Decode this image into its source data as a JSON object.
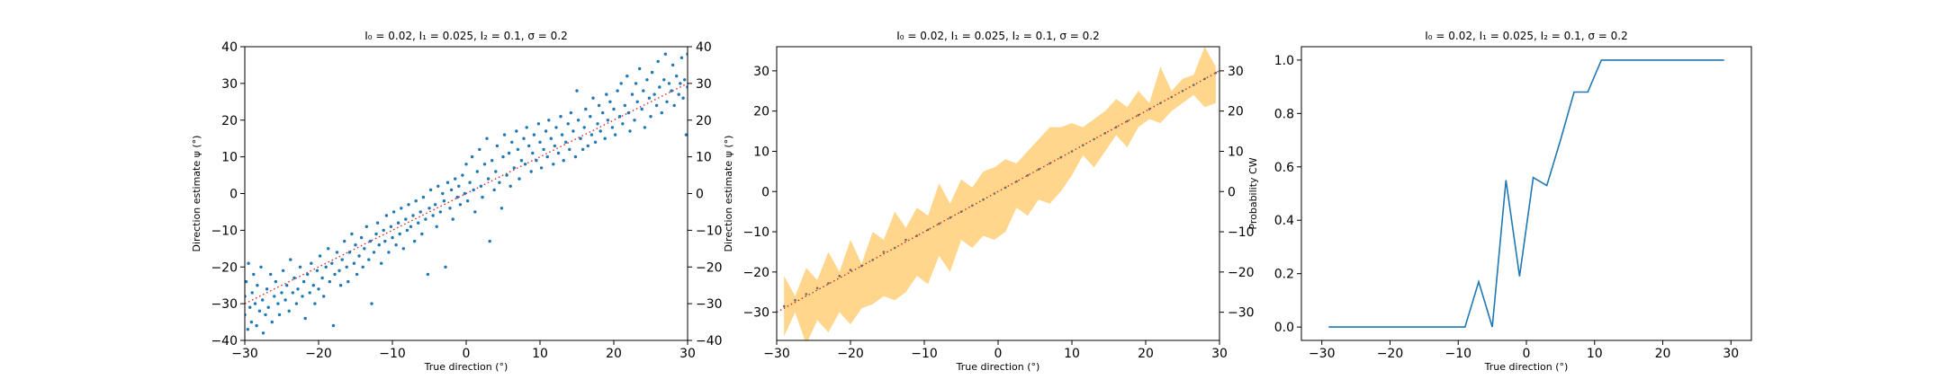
{
  "figure": {
    "background": "#ffffff"
  },
  "colors": {
    "scatter": "#1f77b4",
    "identity": "#d62728",
    "band": "#ffa500",
    "line": "#1f77b4"
  },
  "chart_data": [
    {
      "type": "scatter",
      "title": "I₀ = 0.02, I₁ = 0.025, I₂ = 0.1, σ = 0.2",
      "xlabel": "True direction (°)",
      "ylabel": "Direction estimate ψ (°)",
      "xlim": [
        -30,
        30
      ],
      "ylim": [
        -40,
        40
      ],
      "xticks": [
        "−30",
        "−20",
        "−10",
        "0",
        "10",
        "20",
        "30"
      ],
      "yticks": [
        "40",
        "30",
        "20",
        "10",
        "0",
        "−10",
        "−20",
        "−30",
        "−40"
      ],
      "right_yticks": [
        "40",
        "30",
        "20",
        "10",
        "0",
        "−10",
        "−20",
        "−30",
        "−40"
      ],
      "identity_line": {
        "x": [
          -30,
          30
        ],
        "y": [
          -30,
          30
        ],
        "style": "dotted"
      },
      "points": [
        [
          -30,
          -33
        ],
        [
          -30,
          -28
        ],
        [
          -29.8,
          -24
        ],
        [
          -29.6,
          -37
        ],
        [
          -29.5,
          -19
        ],
        [
          -29.3,
          -31
        ],
        [
          -29.1,
          -35
        ],
        [
          -29,
          -27
        ],
        [
          -28.8,
          -22
        ],
        [
          -28.6,
          -30
        ],
        [
          -28.4,
          -36
        ],
        [
          -28.3,
          -25
        ],
        [
          -28,
          -32
        ],
        [
          -27.8,
          -20
        ],
        [
          -27.6,
          -29
        ],
        [
          -27.5,
          -38
        ],
        [
          -27.2,
          -33
        ],
        [
          -27,
          -26
        ],
        [
          -26.8,
          -31
        ],
        [
          -26.5,
          -22
        ],
        [
          -26.3,
          -35
        ],
        [
          -26,
          -28
        ],
        [
          -25.8,
          -24
        ],
        [
          -25.5,
          -30
        ],
        [
          -25.3,
          -33
        ],
        [
          -25,
          -27
        ],
        [
          -24.8,
          -21
        ],
        [
          -24.5,
          -29
        ],
        [
          -24.3,
          -25
        ],
        [
          -24,
          -32
        ],
        [
          -23.8,
          -18
        ],
        [
          -23.5,
          -27
        ],
        [
          -23.3,
          -23
        ],
        [
          -23,
          -30
        ],
        [
          -22.8,
          -26
        ],
        [
          -22.5,
          -20
        ],
        [
          -22.2,
          -28
        ],
        [
          -22,
          -24
        ],
        [
          -21.8,
          -34
        ],
        [
          -21.5,
          -22
        ],
        [
          -21.2,
          -27
        ],
        [
          -21,
          -19
        ],
        [
          -20.7,
          -25
        ],
        [
          -20.5,
          -30
        ],
        [
          -20.2,
          -21
        ],
        [
          -20,
          -26
        ],
        [
          -19.8,
          -17
        ],
        [
          -19.5,
          -23
        ],
        [
          -19.3,
          -28
        ],
        [
          -19,
          -20
        ],
        [
          -18.7,
          -15
        ],
        [
          -18.5,
          -24
        ],
        [
          -18.2,
          -19
        ],
        [
          -18,
          -36
        ],
        [
          -17.8,
          -22
        ],
        [
          -17.5,
          -16
        ],
        [
          -17.2,
          -21
        ],
        [
          -17,
          -25
        ],
        [
          -16.8,
          -18
        ],
        [
          -16.5,
          -13
        ],
        [
          -16.2,
          -20
        ],
        [
          -16,
          -24
        ],
        [
          -15.8,
          -16
        ],
        [
          -15.5,
          -11
        ],
        [
          -15.2,
          -19
        ],
        [
          -15,
          -14
        ],
        [
          -14.8,
          -22
        ],
        [
          -14.5,
          -17
        ],
        [
          -14.2,
          -12
        ],
        [
          -14,
          -20
        ],
        [
          -13.8,
          -15
        ],
        [
          -13.5,
          -9
        ],
        [
          -13.2,
          -18
        ],
        [
          -13,
          -13
        ],
        [
          -12.8,
          -30
        ],
        [
          -12.5,
          -16
        ],
        [
          -12.2,
          -11
        ],
        [
          -12,
          -8
        ],
        [
          -11.8,
          -14
        ],
        [
          -11.5,
          -19
        ],
        [
          -11.2,
          -10
        ],
        [
          -11,
          -13
        ],
        [
          -10.8,
          -6
        ],
        [
          -10.5,
          -16
        ],
        [
          -10.2,
          -9
        ],
        [
          -10,
          -12
        ],
        [
          -9.8,
          -5
        ],
        [
          -9.5,
          -14
        ],
        [
          -9.2,
          -8
        ],
        [
          -9,
          -11
        ],
        [
          -8.8,
          -4
        ],
        [
          -8.5,
          -15
        ],
        [
          -8.2,
          -7
        ],
        [
          -8,
          -10
        ],
        [
          -7.8,
          -3
        ],
        [
          -7.5,
          -9
        ],
        [
          -7.2,
          -6
        ],
        [
          -7,
          -13
        ],
        [
          -6.8,
          -2
        ],
        [
          -6.5,
          -8
        ],
        [
          -6.2,
          -5
        ],
        [
          -6,
          -11
        ],
        [
          -5.8,
          -1
        ],
        [
          -5.5,
          -7
        ],
        [
          -5.2,
          -22
        ],
        [
          -5,
          -4
        ],
        [
          -4.8,
          1
        ],
        [
          -4.5,
          -6
        ],
        [
          -4.2,
          -3
        ],
        [
          -4,
          -9
        ],
        [
          -3.8,
          2
        ],
        [
          -3.5,
          -5
        ],
        [
          -3.2,
          0
        ],
        [
          -3,
          -2
        ],
        [
          -2.8,
          -20
        ],
        [
          -2.5,
          3
        ],
        [
          -2.2,
          -4
        ],
        [
          -2,
          1
        ],
        [
          -1.8,
          -7
        ],
        [
          -1.5,
          4
        ],
        [
          -1.2,
          -1
        ],
        [
          -1,
          2
        ],
        [
          -0.8,
          -3
        ],
        [
          -0.5,
          5
        ],
        [
          -0.2,
          0
        ],
        [
          0,
          8
        ],
        [
          0.2,
          -2
        ],
        [
          0.5,
          3
        ],
        [
          0.8,
          10
        ],
        [
          1,
          1
        ],
        [
          1.2,
          -5
        ],
        [
          1.5,
          6
        ],
        [
          1.8,
          12
        ],
        [
          2,
          2
        ],
        [
          2.2,
          -1
        ],
        [
          2.5,
          8
        ],
        [
          2.8,
          15
        ],
        [
          3,
          4
        ],
        [
          3.2,
          -13
        ],
        [
          3.5,
          9
        ],
        [
          3.8,
          1
        ],
        [
          4,
          6
        ],
        [
          4.2,
          13
        ],
        [
          4.5,
          3
        ],
        [
          4.8,
          -4
        ],
        [
          5,
          10
        ],
        [
          5.2,
          16
        ],
        [
          5.5,
          5
        ],
        [
          5.8,
          11
        ],
        [
          6,
          2
        ],
        [
          6.2,
          14
        ],
        [
          6.5,
          7
        ],
        [
          6.8,
          17
        ],
        [
          7,
          12
        ],
        [
          7.2,
          4
        ],
        [
          7.5,
          9
        ],
        [
          7.8,
          15
        ],
        [
          8,
          8
        ],
        [
          8.2,
          18
        ],
        [
          8.5,
          13
        ],
        [
          8.8,
          6
        ],
        [
          9,
          11
        ],
        [
          9.2,
          16
        ],
        [
          9.5,
          9
        ],
        [
          9.8,
          19
        ],
        [
          10,
          14
        ],
        [
          10.2,
          7
        ],
        [
          10.5,
          12
        ],
        [
          10.8,
          17
        ],
        [
          11,
          10
        ],
        [
          11.2,
          20
        ],
        [
          11.5,
          15
        ],
        [
          11.8,
          8
        ],
        [
          12,
          13
        ],
        [
          12.2,
          18
        ],
        [
          12.5,
          11
        ],
        [
          12.8,
          21
        ],
        [
          13,
          16
        ],
        [
          13.2,
          9
        ],
        [
          13.5,
          14
        ],
        [
          13.8,
          19
        ],
        [
          14,
          12
        ],
        [
          14.2,
          22
        ],
        [
          14.5,
          17
        ],
        [
          14.8,
          10
        ],
        [
          15,
          28
        ],
        [
          15.2,
          20
        ],
        [
          15.5,
          15
        ],
        [
          15.8,
          12
        ],
        [
          16,
          18
        ],
        [
          16.2,
          23
        ],
        [
          16.5,
          13
        ],
        [
          16.8,
          21
        ],
        [
          17,
          16
        ],
        [
          17.2,
          26
        ],
        [
          17.5,
          14
        ],
        [
          17.8,
          19
        ],
        [
          18,
          24
        ],
        [
          18.2,
          17
        ],
        [
          18.5,
          22
        ],
        [
          18.8,
          15
        ],
        [
          19,
          27
        ],
        [
          19.2,
          20
        ],
        [
          19.5,
          25
        ],
        [
          19.8,
          18
        ],
        [
          20,
          23
        ],
        [
          20.2,
          16
        ],
        [
          20.5,
          28
        ],
        [
          20.8,
          21
        ],
        [
          21,
          30
        ],
        [
          21.2,
          19
        ],
        [
          21.5,
          24
        ],
        [
          21.8,
          32
        ],
        [
          22,
          22
        ],
        [
          22.2,
          17
        ],
        [
          22.5,
          27
        ],
        [
          22.8,
          20
        ],
        [
          23,
          30
        ],
        [
          23.2,
          25
        ],
        [
          23.5,
          34
        ],
        [
          23.8,
          23
        ],
        [
          24,
          28
        ],
        [
          24.2,
          18
        ],
        [
          24.5,
          31
        ],
        [
          24.8,
          26
        ],
        [
          25,
          21
        ],
        [
          25.2,
          33
        ],
        [
          25.5,
          27
        ],
        [
          25.8,
          24
        ],
        [
          26,
          36
        ],
        [
          26.2,
          29
        ],
        [
          26.5,
          22
        ],
        [
          26.8,
          31
        ],
        [
          27,
          38
        ],
        [
          27.2,
          25
        ],
        [
          27.5,
          30
        ],
        [
          27.8,
          28
        ],
        [
          28,
          35
        ],
        [
          28.2,
          24
        ],
        [
          28.5,
          32
        ],
        [
          28.8,
          27
        ],
        [
          29,
          30
        ],
        [
          29.2,
          37
        ],
        [
          29.4,
          26
        ],
        [
          29.6,
          31
        ],
        [
          29.8,
          16
        ],
        [
          30,
          38
        ],
        [
          30,
          29
        ]
      ]
    },
    {
      "type": "area",
      "title": "I₀ = 0.02, I₁ = 0.025, I₂ = 0.1, σ = 0.2",
      "xlabel": "True direction (°)",
      "ylabel": "Direction estimate ψ (°)",
      "xlim": [
        -30,
        30
      ],
      "ylim": [
        -37,
        36
      ],
      "xticks": [
        "−30",
        "−20",
        "−10",
        "0",
        "10",
        "20",
        "30"
      ],
      "yticks": [
        "30",
        "20",
        "10",
        "0",
        "−10",
        "−20",
        "−30"
      ],
      "right_yticks": [
        "30",
        "20",
        "10",
        "0",
        "−10",
        "−20",
        "−30"
      ],
      "identity_line": {
        "x": [
          -30,
          30
        ],
        "y": [
          -30,
          30
        ],
        "style": "dotted"
      },
      "x": [
        -29,
        -27.5,
        -26,
        -24.5,
        -23,
        -21.5,
        -20,
        -18.5,
        -17,
        -15.5,
        -14,
        -12.5,
        -11,
        -9.5,
        -8,
        -6.5,
        -5,
        -3.5,
        -2,
        -0.5,
        1,
        2.5,
        4,
        5.5,
        7,
        8.5,
        10,
        11.5,
        13,
        14.5,
        16,
        17.5,
        19,
        20.5,
        22,
        23.5,
        25,
        26.5,
        28,
        29.5
      ],
      "band_upper": [
        -21,
        -26,
        -19,
        -22,
        -15,
        -20,
        -12,
        -18,
        -10,
        -12,
        -5,
        -9,
        -4,
        -6,
        2,
        -3,
        3,
        1,
        5,
        6,
        8,
        7,
        10,
        13,
        16,
        16,
        17,
        16,
        18,
        20,
        23,
        21,
        25,
        22,
        31,
        25,
        28,
        29,
        36,
        31
      ],
      "band_lower": [
        -36,
        -30,
        -38,
        -32,
        -35,
        -30,
        -33,
        -29,
        -28,
        -26,
        -27,
        -25,
        -21,
        -23,
        -16,
        -20,
        -12,
        -14,
        -11,
        -12,
        -10,
        -4,
        -6,
        -2,
        -3,
        0,
        4,
        9,
        6,
        10,
        14,
        11,
        16,
        18,
        17,
        20,
        22,
        24,
        21,
        22
      ],
      "points": [
        [
          -29,
          -28.5
        ],
        [
          -27.5,
          -27
        ],
        [
          -26,
          -25.5
        ],
        [
          -24.5,
          -24
        ],
        [
          -23,
          -22.8
        ],
        [
          -21.5,
          -21
        ],
        [
          -20,
          -19.5
        ],
        [
          -18.5,
          -18.5
        ],
        [
          -17,
          -17
        ],
        [
          -15.5,
          -15
        ],
        [
          -14,
          -14
        ],
        [
          -12.5,
          -12
        ],
        [
          -11,
          -11
        ],
        [
          -9.5,
          -9.5
        ],
        [
          -8,
          -8
        ],
        [
          -6.5,
          -6.5
        ],
        [
          -5,
          -5
        ],
        [
          -3.5,
          -3.5
        ],
        [
          -2,
          -2
        ],
        [
          -0.5,
          -0.5
        ],
        [
          1,
          1
        ],
        [
          2.5,
          2.5
        ],
        [
          4,
          4
        ],
        [
          5.5,
          5.5
        ],
        [
          7,
          7
        ],
        [
          8.5,
          8.5
        ],
        [
          10,
          10
        ],
        [
          11.5,
          11.5
        ],
        [
          13,
          13
        ],
        [
          14.5,
          14.5
        ],
        [
          16,
          16
        ],
        [
          17.5,
          17.5
        ],
        [
          19,
          19
        ],
        [
          20.5,
          20.5
        ],
        [
          22,
          22
        ],
        [
          23.5,
          23.5
        ],
        [
          25,
          25
        ],
        [
          26.5,
          26.5
        ],
        [
          28,
          28
        ],
        [
          29.5,
          29.5
        ]
      ]
    },
    {
      "type": "line",
      "title": "I₀ = 0.02, I₁ = 0.025, I₂ = 0.1, σ = 0.2",
      "xlabel": "True direction (°)",
      "ylabel": "Probability CW",
      "xlim": [
        -33,
        33
      ],
      "ylim": [
        -0.05,
        1.05
      ],
      "xticks": [
        "−30",
        "−20",
        "−10",
        "0",
        "10",
        "20",
        "30"
      ],
      "yticks": [
        "1.0",
        "0.8",
        "0.6",
        "0.4",
        "0.2",
        "0.0"
      ],
      "x": [
        -29,
        -27,
        -25,
        -23,
        -21,
        -19,
        -17,
        -15,
        -13,
        -11,
        -9,
        -7,
        -5,
        -3,
        -1,
        1,
        3,
        5,
        7,
        9,
        11,
        13,
        15,
        17,
        19,
        21,
        23,
        25,
        27,
        29
      ],
      "y": [
        0,
        0,
        0,
        0,
        0,
        0,
        0,
        0,
        0,
        0,
        0,
        0.17,
        0,
        0.55,
        0.19,
        0.56,
        0.53,
        0.7,
        0.88,
        0.88,
        1.0,
        1.0,
        1.0,
        1.0,
        1.0,
        1.0,
        1.0,
        1.0,
        1.0,
        1.0
      ]
    }
  ]
}
